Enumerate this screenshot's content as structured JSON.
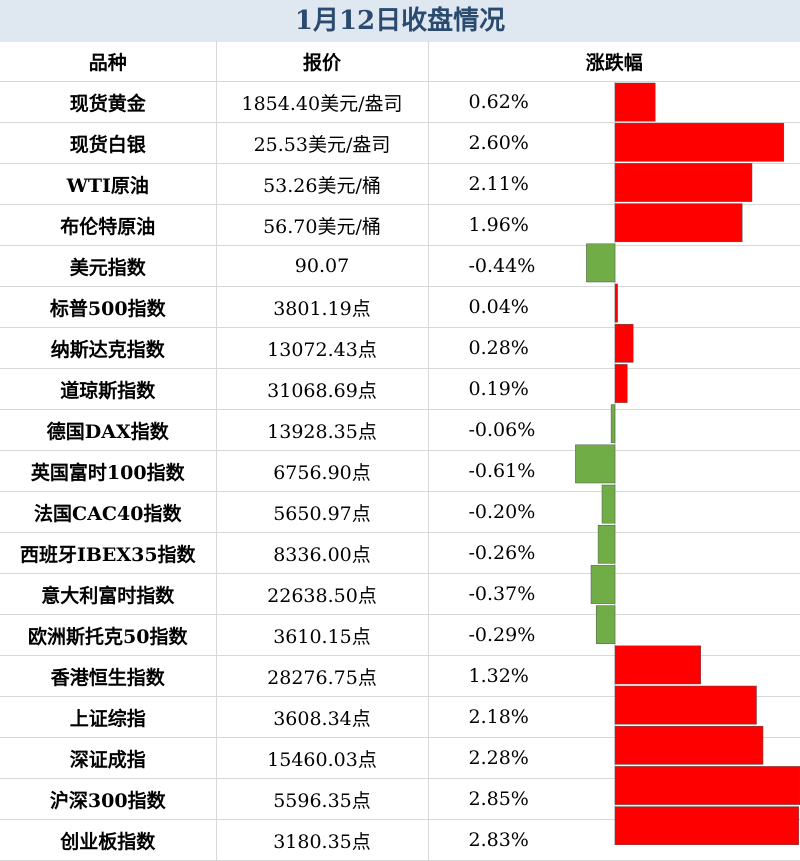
{
  "title": "1月12日收盘情况",
  "headers": {
    "name": "品种",
    "price": "报价",
    "change": "涨跌幅"
  },
  "colors": {
    "positive": "#ff0000",
    "negative": "#70ad47",
    "title_bg": "#dfe8f1",
    "title_text": "#2b4a6f"
  },
  "rows": [
    {
      "name": "现货黄金",
      "price": "1854.40美元/盎司",
      "change": "0.62%"
    },
    {
      "name": "现货白银",
      "price": "25.53美元/盎司",
      "change": "2.60%"
    },
    {
      "name": "WTI原油",
      "price": "53.26美元/桶",
      "change": "2.11%"
    },
    {
      "name": "布伦特原油",
      "price": "56.70美元/桶",
      "change": "1.96%"
    },
    {
      "name": "美元指数",
      "price": "90.07",
      "change": "-0.44%"
    },
    {
      "name": "标普500指数",
      "price": "3801.19点",
      "change": "0.04%"
    },
    {
      "name": "纳斯达克指数",
      "price": "13072.43点",
      "change": "0.28%"
    },
    {
      "name": "道琼斯指数",
      "price": "31068.69点",
      "change": "0.19%"
    },
    {
      "name": "德国DAX指数",
      "price": "13928.35点",
      "change": "-0.06%"
    },
    {
      "name": "英国富时100指数",
      "price": "6756.90点",
      "change": "-0.61%"
    },
    {
      "name": "法国CAC40指数",
      "price": "5650.97点",
      "change": "-0.20%"
    },
    {
      "name": "西班牙IBEX35指数",
      "price": "8336.00点",
      "change": "-0.26%"
    },
    {
      "name": "意大利富时指数",
      "price": "22638.50点",
      "change": "-0.37%"
    },
    {
      "name": "欧洲斯托克50指数",
      "price": "3610.15点",
      "change": "-0.29%"
    },
    {
      "name": "香港恒生指数",
      "price": "28276.75点",
      "change": "1.32%"
    },
    {
      "name": "上证综指",
      "price": "3608.34点",
      "change": "2.18%"
    },
    {
      "name": "深证成指",
      "price": "15460.03点",
      "change": "2.28%"
    },
    {
      "name": "沪深300指数",
      "price": "5596.35点",
      "change": "2.85%"
    },
    {
      "name": "创业板指数",
      "price": "3180.35点",
      "change": "2.83%"
    }
  ],
  "chart_data": {
    "type": "bar",
    "orientation": "horizontal",
    "categories": [
      "现货黄金",
      "现货白银",
      "WTI原油",
      "布伦特原油",
      "美元指数",
      "标普500指数",
      "纳斯达克指数",
      "道琼斯指数",
      "德国DAX指数",
      "英国富时100指数",
      "法国CAC40指数",
      "西班牙IBEX35指数",
      "意大利富时指数",
      "欧洲斯托克50指数",
      "香港恒生指数",
      "上证综指",
      "深证成指",
      "沪深300指数",
      "创业板指数"
    ],
    "values": [
      0.62,
      2.6,
      2.11,
      1.96,
      -0.44,
      0.04,
      0.28,
      0.19,
      -0.06,
      -0.61,
      -0.2,
      -0.26,
      -0.37,
      -0.29,
      1.32,
      2.18,
      2.28,
      2.85,
      2.83
    ],
    "unit": "%",
    "xlim": [
      -0.61,
      2.85
    ]
  }
}
